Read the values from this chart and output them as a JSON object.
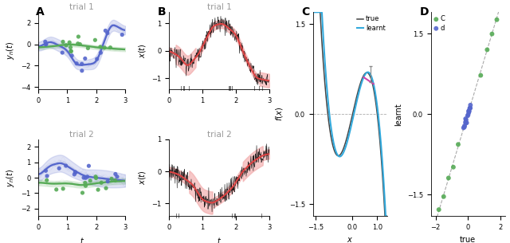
{
  "fig_width": 6.4,
  "fig_height": 3.05,
  "panel_label_fontsize": 10,
  "title_fontsize": 7.5,
  "axis_label_fontsize": 7,
  "tick_fontsize": 6,
  "legend_fontsize": 6,
  "blue_color": "#5566cc",
  "green_color": "#55aa55",
  "red_color": "#dd4444",
  "pink_fill": "#f2aaaa",
  "cyan_color": "#33aadd",
  "magenta_color": "#cc44aa",
  "gray_color": "#999999",
  "dark_gray": "#444444",
  "trial1_title": "trial 1",
  "trial2_title": "trial 2",
  "C_true_label": "true",
  "C_learned_label": "learnt",
  "D_C_label": "C",
  "D_d_label": "d",
  "C_xlim": [
    -1.6,
    1.4
  ],
  "C_ylim": [
    -1.7,
    1.7
  ],
  "D_xlim": [
    -2.3,
    2.3
  ],
  "D_ylim": [
    -1.9,
    1.9
  ]
}
